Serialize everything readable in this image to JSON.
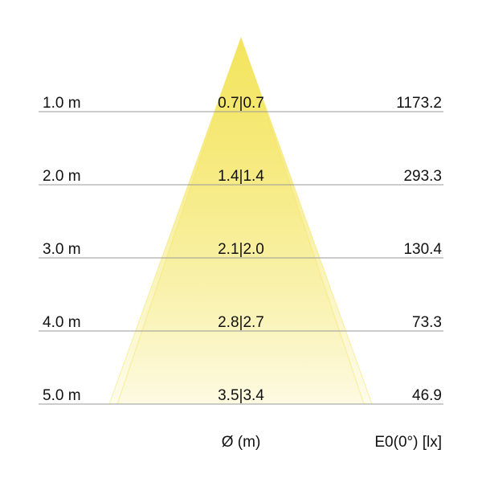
{
  "rows": [
    {
      "distance": "1.0 m",
      "diameter": "0.7|0.7",
      "illuminance": "1173.2"
    },
    {
      "distance": "2.0 m",
      "diameter": "1.4|1.4",
      "illuminance": "293.3"
    },
    {
      "distance": "3.0 m",
      "diameter": "2.1|2.0",
      "illuminance": "130.4"
    },
    {
      "distance": "4.0 m",
      "diameter": "2.8|2.7",
      "illuminance": "73.3"
    },
    {
      "distance": "5.0 m",
      "diameter": "3.5|3.4",
      "illuminance": "46.9"
    }
  ],
  "footer": {
    "diameter_label": "Ø (m)",
    "illuminance_label": "E0(0°) [lx]"
  },
  "colors": {
    "cone": "#f3e45a",
    "line": "#999999"
  }
}
